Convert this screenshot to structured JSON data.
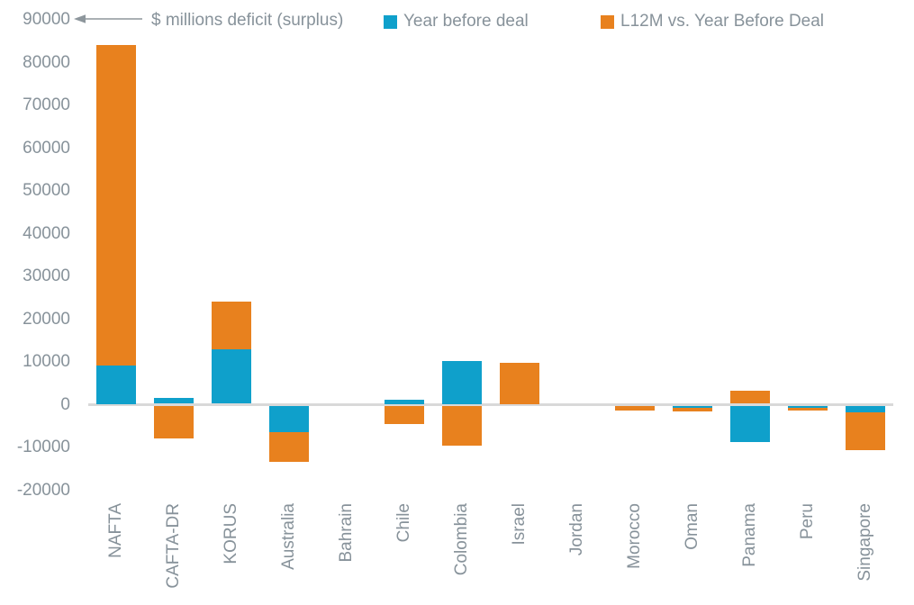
{
  "header": {
    "axis_annotation": "$ millions deficit (surplus)"
  },
  "chart_data": {
    "type": "bar",
    "stacked": true,
    "title": "$ millions deficit (surplus)",
    "unit": "$ millions",
    "categories": [
      "NAFTA",
      "CAFTA-DR",
      "KORUS",
      "Australia",
      "Bahrain",
      "Chile",
      "Colombia",
      "Israel",
      "Jordan",
      "Morocco",
      "Oman",
      "Panama",
      "Peru",
      "Singapore"
    ],
    "series": [
      {
        "name": "Year before deal",
        "color": "#0fa0cb",
        "values": [
          9000,
          1400,
          12800,
          -6300,
          0,
          1000,
          10000,
          0,
          0,
          0,
          -600,
          -8600,
          -450,
          -1500
        ]
      },
      {
        "name": "L12M vs. Year Before Deal",
        "color": "#e8811e",
        "values": [
          75000,
          -7600,
          11200,
          -6800,
          0,
          -4300,
          -9300,
          9500,
          0,
          -1200,
          -700,
          3100,
          -750,
          -8900
        ]
      }
    ],
    "ylim": [
      -20000,
      90000
    ],
    "yticks": [
      90000,
      80000,
      70000,
      60000,
      50000,
      40000,
      30000,
      20000,
      10000,
      0,
      -10000,
      -20000
    ],
    "grid": "zero-baseline-only",
    "legend_position": "top",
    "colors": {
      "text": "#87929a",
      "baseline": "#d9d9d9",
      "arrow": "#8d969c"
    }
  }
}
